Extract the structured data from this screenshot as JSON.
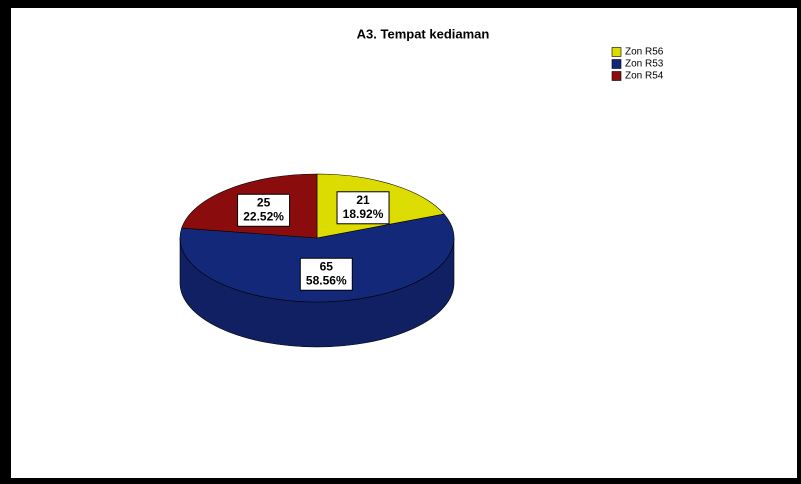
{
  "chart_data": {
    "type": "pie",
    "title": "A3. Tempat kediaman",
    "categories": [
      "Zon R56",
      "Zon R53",
      "Zon R54"
    ],
    "values": [
      21,
      65,
      25
    ],
    "percent_labels": [
      "18.92%",
      "58.56%",
      "22.52%"
    ],
    "colors": [
      "#dcdc00",
      "#14287a",
      "#8a0c0c"
    ],
    "legend": "upper right",
    "style": "3d"
  }
}
